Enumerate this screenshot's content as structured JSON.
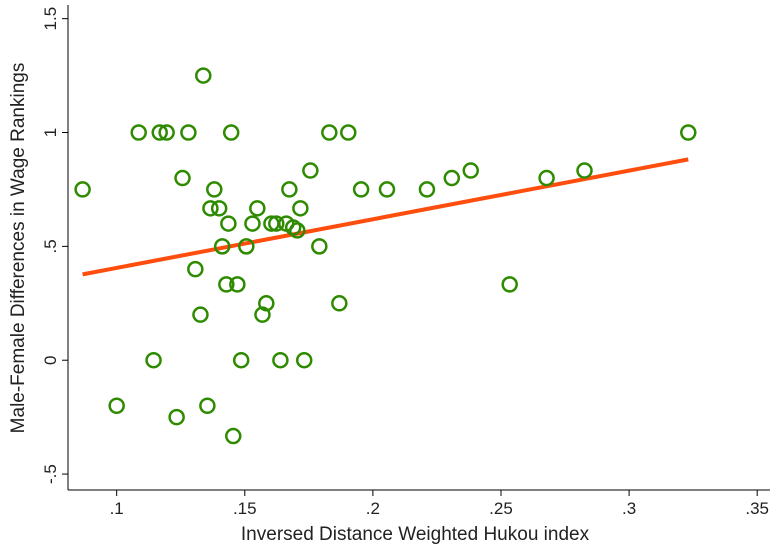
{
  "chart_data": {
    "type": "scatter",
    "x_label": "Inversed Distance Weighted Hukou index",
    "y_label": "Male-Female Differences in Wage Rankings",
    "xlim": [
      0.081,
      0.355
    ],
    "ylim": [
      -0.57,
      1.56
    ],
    "xticks": [
      {
        "value": 0.1,
        "label": ".1"
      },
      {
        "value": 0.15,
        "label": ".15"
      },
      {
        "value": 0.2,
        "label": ".2"
      },
      {
        "value": 0.25,
        "label": ".25"
      },
      {
        "value": 0.3,
        "label": ".3"
      },
      {
        "value": 0.35,
        "label": ".35"
      }
    ],
    "yticks": [
      {
        "value": -0.5,
        "label": "-.5"
      },
      0,
      {
        "value": 0.5,
        "label": ".5"
      },
      1,
      1.5
    ],
    "points": {
      "color": "#2e8b00",
      "x": [
        0.0867,
        0.1,
        0.1086,
        0.1144,
        0.1168,
        0.1195,
        0.1234,
        0.1257,
        0.128,
        0.1307,
        0.1327,
        0.1338,
        0.1354,
        0.1366,
        0.1381,
        0.14,
        0.1412,
        0.1428,
        0.1436,
        0.1447,
        0.1455,
        0.1471,
        0.1486,
        0.1506,
        0.153,
        0.1549,
        0.1569,
        0.1584,
        0.1604,
        0.1623,
        0.1639,
        0.1662,
        0.1674,
        0.1689,
        0.1705,
        0.1717,
        0.1732,
        0.1756,
        0.1791,
        0.183,
        0.1869,
        0.1904,
        0.1954,
        0.2055,
        0.2211,
        0.2308,
        0.2382,
        0.2534,
        0.2678,
        0.2826,
        0.3231
      ],
      "values": [
        0.75,
        -0.2,
        1,
        0,
        1,
        1,
        -0.25,
        0.8,
        1,
        0.4,
        0.2,
        1.25,
        -0.2,
        0.667,
        0.75,
        0.667,
        0.5,
        0.333,
        0.6,
        1,
        -0.333,
        0.333,
        0,
        0.5,
        0.6,
        0.667,
        0.2,
        0.25,
        0.6,
        0.6,
        0,
        0.6,
        0.75,
        0.583,
        0.57,
        0.667,
        0,
        0.833,
        0.5,
        1,
        0.25,
        1,
        0.75,
        0.75,
        0.75,
        0.8,
        0.833,
        0.333,
        0.8,
        0.833,
        1
      ]
    },
    "fit": {
      "color": "#ff4d0d",
      "x": [
        0.0867,
        0.3231
      ],
      "values": [
        0.377,
        0.882
      ]
    }
  }
}
